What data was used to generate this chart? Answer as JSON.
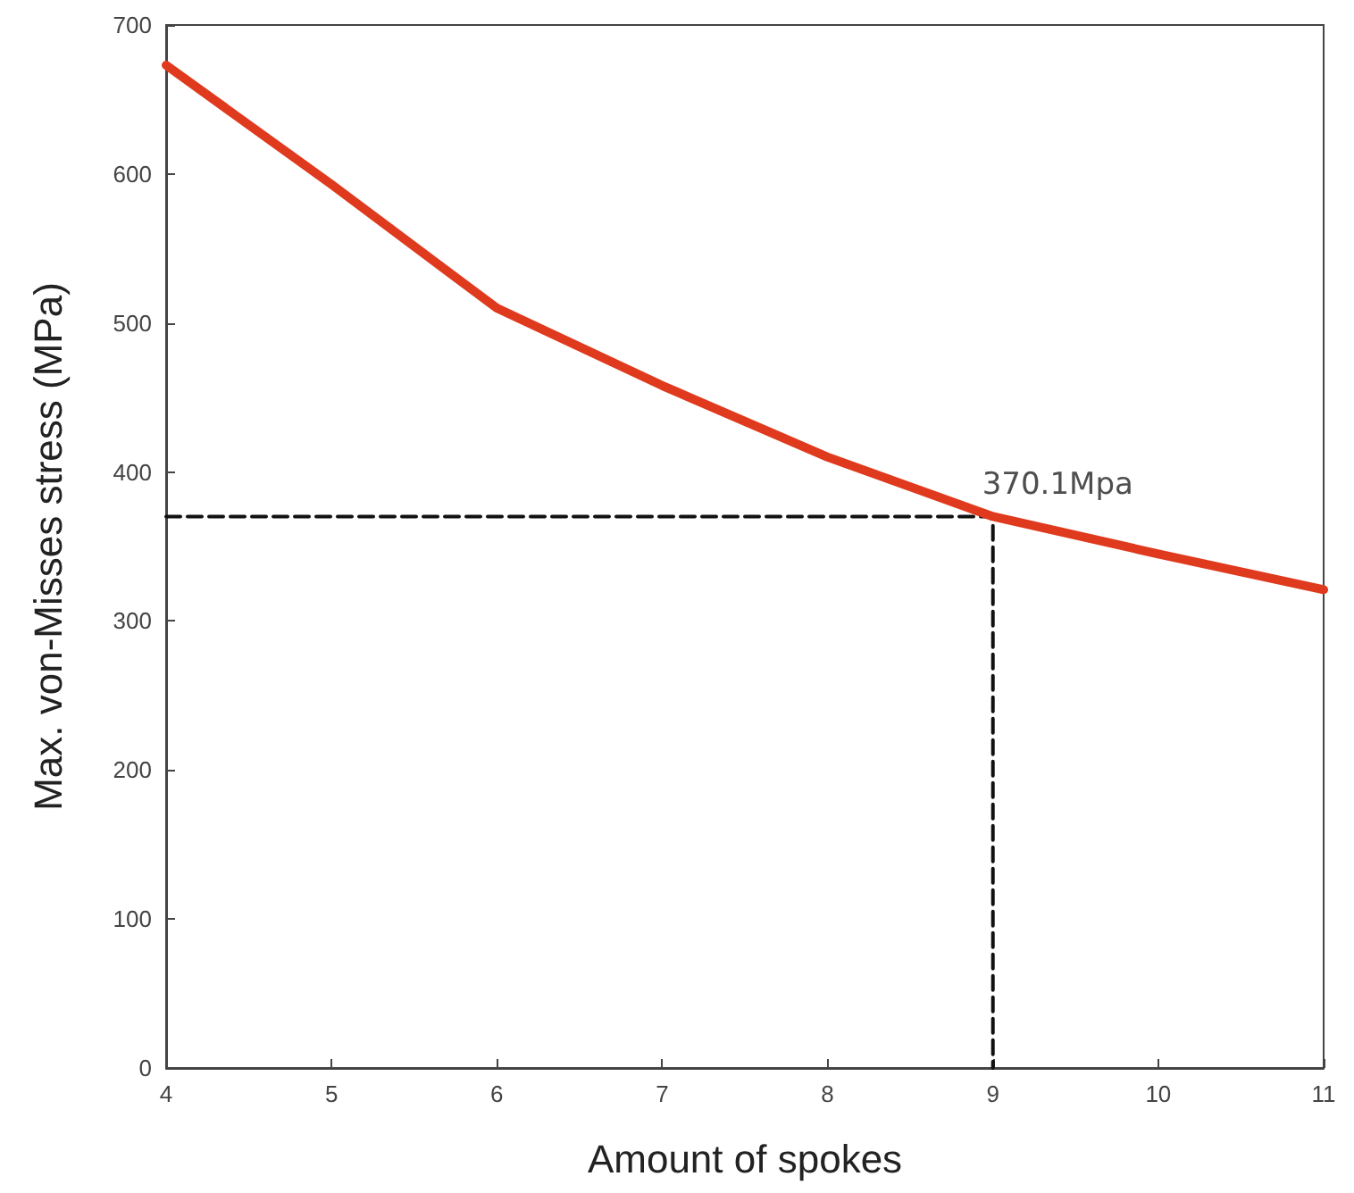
{
  "chart_data": {
    "type": "line",
    "xlabel": "Amount of spokes",
    "ylabel": "Max. von-Misses stress (MPa)",
    "xlim": [
      4,
      11
    ],
    "xticks": [
      4,
      5,
      6,
      7,
      8,
      9,
      10,
      11
    ],
    "ylim": [
      0,
      700
    ],
    "yticks": [
      0,
      100,
      200,
      300,
      400,
      500,
      600,
      700
    ],
    "grid": false,
    "marker": "none",
    "series": [
      {
        "color": "#e03a1e",
        "x": [
          4,
          5,
          6,
          7,
          8,
          9,
          10,
          11
        ],
        "values": [
          673,
          593,
          510,
          458,
          410,
          370.1,
          345,
          321
        ],
        "line_style": "solid"
      },
      {
        "color": "#111111",
        "x": [
          4,
          9,
          9
        ],
        "values": [
          370.1,
          370.1,
          0
        ],
        "line_style": "dashed"
      }
    ],
    "annotations": [
      {
        "text": "370.1Mpa",
        "x": 9,
        "y": 370.1
      }
    ]
  }
}
